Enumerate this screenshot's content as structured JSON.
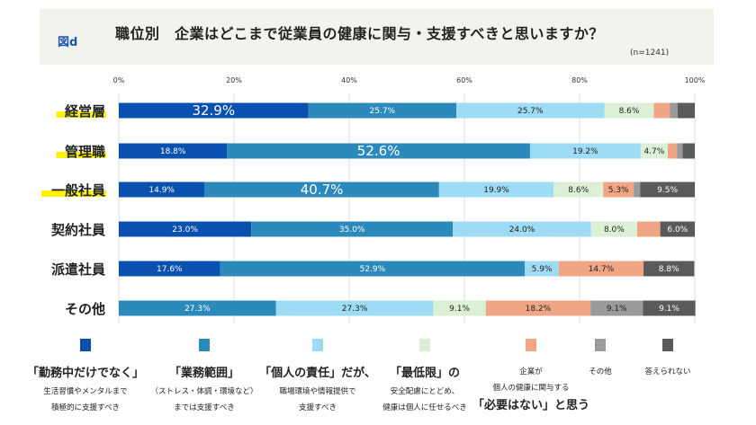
{
  "header": {
    "figure_label": "図d",
    "title": "職位別　企業はどこまで従業員の健康に関与・支援すべきと思いますか？",
    "sample": "(n=1241)"
  },
  "chart_data": {
    "type": "bar",
    "orientation": "horizontal-stacked-100",
    "xlim": [
      0,
      100
    ],
    "x_ticks": [
      "0%",
      "20%",
      "40%",
      "60%",
      "80%",
      "100%"
    ],
    "grid": true,
    "legend_position": "bottom",
    "categories": [
      "経営層",
      "管理職",
      "一般社員",
      "契約社員",
      "派遣社員",
      "その他"
    ],
    "highlighted_categories": [
      "経営層",
      "管理職",
      "一般社員"
    ],
    "highlight_color": "#fff200",
    "series": [
      {
        "name": "「勤務中だけでなく」生活習慣やメンタルまで積極的に支援すべき",
        "color": "#0a50ae",
        "values": [
          32.9,
          18.8,
          14.9,
          23.0,
          17.6,
          0
        ]
      },
      {
        "name": "「業務範囲」（ストレス・体調・環境など）までは支援すべき",
        "color": "#2c89bb",
        "values": [
          25.7,
          52.6,
          40.7,
          35.0,
          52.9,
          27.3
        ]
      },
      {
        "name": "「個人の責任」だが、職場環境や情報提供で支援すべき",
        "color": "#9edbf5",
        "values": [
          25.7,
          19.2,
          19.9,
          24.0,
          5.9,
          27.3
        ]
      },
      {
        "name": "「最低限」の安全配慮にとどめ、健康は個人に任せるべき",
        "color": "#dbf0d4",
        "values": [
          8.6,
          4.7,
          8.6,
          8.0,
          0,
          9.1
        ]
      },
      {
        "name": "企業が個人の健康に関与する「必要はない」と思う",
        "color": "#f0a584",
        "values": [
          2.8,
          1.6,
          5.3,
          4.0,
          14.7,
          18.2
        ]
      },
      {
        "name": "その他",
        "color": "#9a9a9a",
        "values": [
          1.3,
          1.0,
          1.1,
          0,
          0,
          9.1
        ]
      },
      {
        "name": "答えられない",
        "color": "#5a5a5a",
        "values": [
          3.0,
          2.1,
          9.5,
          6.0,
          8.8,
          9.1
        ]
      }
    ],
    "data_labels": [
      [
        "32.9%",
        "25.7%",
        "25.7%",
        "8.6%",
        "",
        "",
        ""
      ],
      [
        "18.8%",
        "52.6%",
        "19.2%",
        "4.7%",
        "",
        "",
        ""
      ],
      [
        "14.9%",
        "40.7%",
        "19.9%",
        "8.6%",
        "5.3%",
        "",
        "9.5%"
      ],
      [
        "23.0%",
        "35.0%",
        "24.0%",
        "8.0%",
        "",
        "",
        "6.0%"
      ],
      [
        "17.6%",
        "52.9%",
        "5.9%",
        "",
        "14.7%",
        "",
        "8.8%"
      ],
      [
        "",
        "27.3%",
        "27.3%",
        "9.1%",
        "18.2%",
        "9.1%",
        "9.1%"
      ]
    ],
    "emphasized_labels": [
      "32.9%",
      "52.6%",
      "40.7%"
    ]
  },
  "legend": [
    {
      "lines": [
        {
          "t": "「勤務中だけでなく」",
          "big": true
        },
        {
          "t": "生活習慣やメンタルまで"
        },
        {
          "t": "積極的に支援すべき"
        }
      ]
    },
    {
      "lines": [
        {
          "t": "「業務範囲」",
          "big": true
        },
        {
          "t": "（ストレス・体調・環境など）"
        },
        {
          "t": "までは支援すべき"
        }
      ]
    },
    {
      "lines": [
        {
          "t": "「個人の責任」だが、",
          "big": true
        },
        {
          "t": "職場環境や情報提供で"
        },
        {
          "t": "支援すべき"
        }
      ]
    },
    {
      "lines": [
        {
          "t": "「最低限」の",
          "big": true
        },
        {
          "t": "安全配慮にとどめ、"
        },
        {
          "t": "健康は個人に任せるべき"
        }
      ]
    },
    {
      "lines": [
        {
          "t": "企業が"
        },
        {
          "t": "個人の健康に関与する"
        },
        {
          "t": "「必要はない」と思う",
          "big": true
        }
      ]
    },
    {
      "lines": [
        {
          "t": "その他"
        }
      ]
    },
    {
      "lines": [
        {
          "t": "答えられない"
        }
      ]
    }
  ]
}
